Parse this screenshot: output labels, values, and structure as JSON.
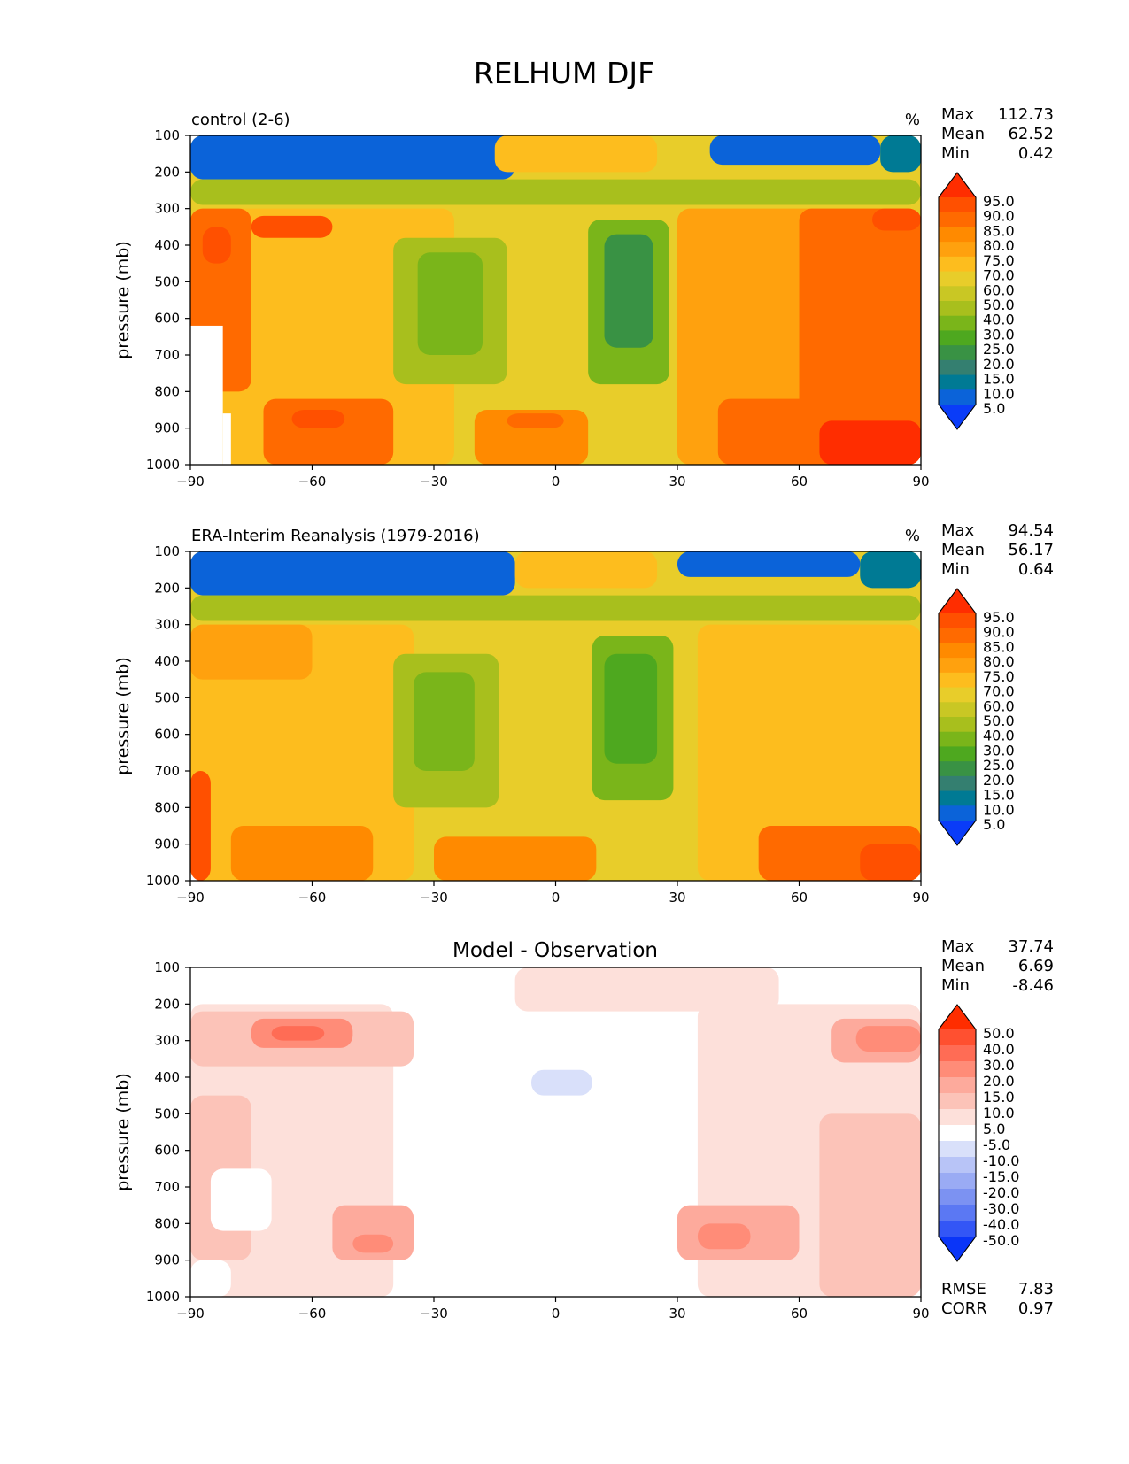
{
  "chart_data": {
    "type": "contour",
    "title": "RELHUM DJF",
    "panels": [
      {
        "id": "control",
        "title": "control (2-6)",
        "units": "%",
        "stats": [
          [
            "Max",
            "112.73"
          ],
          [
            "Mean",
            "62.52"
          ],
          [
            "Min",
            "0.42"
          ]
        ],
        "xlabel": "",
        "ylabel": "pressure (mb)",
        "xlim": [
          -90,
          90
        ],
        "ylim": [
          1000,
          100
        ],
        "xticks": [
          "−90",
          "−60",
          "−30",
          "0",
          "30",
          "60",
          "90"
        ],
        "yticks": [
          "100",
          "200",
          "300",
          "400",
          "500",
          "600",
          "700",
          "800",
          "900",
          "1000"
        ],
        "colorbar": {
          "labels": [
            "95.0",
            "90.0",
            "85.0",
            "80.0",
            "75.0",
            "70.0",
            "60.0",
            "50.0",
            "40.0",
            "30.0",
            "25.0",
            "20.0",
            "15.0",
            "10.0",
            "5.0"
          ],
          "colors": [
            "#ff2d00",
            "#ff5000",
            "#ff6a00",
            "#ff8a00",
            "#ffa10e",
            "#fdbd1e",
            "#e8cd2a",
            "#c9c724",
            "#a8bf1d",
            "#7ab51a",
            "#4ea81f",
            "#399244",
            "#347f70",
            "#007a94",
            "#0b63d9",
            "#0a3cf8"
          ],
          "extend": "both"
        },
        "blocks": [
          {
            "lat": [
              -90,
              90
            ],
            "p": [
              100,
              1000
            ],
            "v": 62
          },
          {
            "lat": [
              -90,
              -25
            ],
            "p": [
              300,
              1000
            ],
            "v": 72
          },
          {
            "lat": [
              30,
              90
            ],
            "p": [
              300,
              1000
            ],
            "v": 77
          },
          {
            "lat": [
              -90,
              -75
            ],
            "p": [
              300,
              800
            ],
            "v": 85
          },
          {
            "lat": [
              -75,
              -55
            ],
            "p": [
              320,
              380
            ],
            "v": 90
          },
          {
            "lat": [
              -87,
              -80
            ],
            "p": [
              350,
              450
            ],
            "v": 92
          },
          {
            "lat": [
              60,
              90
            ],
            "p": [
              300,
              1000
            ],
            "v": 85
          },
          {
            "lat": [
              78,
              90
            ],
            "p": [
              300,
              360
            ],
            "v": 92
          },
          {
            "lat": [
              -72,
              -40
            ],
            "p": [
              820,
              1000
            ],
            "v": 85
          },
          {
            "lat": [
              -65,
              -52
            ],
            "p": [
              850,
              900
            ],
            "v": 93
          },
          {
            "lat": [
              40,
              90
            ],
            "p": [
              820,
              1000
            ],
            "v": 85
          },
          {
            "lat": [
              65,
              90
            ],
            "p": [
              880,
              1000
            ],
            "v": 95
          },
          {
            "lat": [
              -20,
              8
            ],
            "p": [
              850,
              1000
            ],
            "v": 80
          },
          {
            "lat": [
              -12,
              2
            ],
            "p": [
              860,
              900
            ],
            "v": 87
          },
          {
            "lat": [
              -40,
              -12
            ],
            "p": [
              380,
              780
            ],
            "v": 40
          },
          {
            "lat": [
              -34,
              -18
            ],
            "p": [
              420,
              700
            ],
            "v": 35
          },
          {
            "lat": [
              8,
              28
            ],
            "p": [
              330,
              780
            ],
            "v": 32
          },
          {
            "lat": [
              12,
              24
            ],
            "p": [
              370,
              680
            ],
            "v": 22
          },
          {
            "lat": [
              -90,
              -10
            ],
            "p": [
              100,
              220
            ],
            "v": 5
          },
          {
            "lat": [
              38,
              80
            ],
            "p": [
              100,
              180
            ],
            "v": 5
          },
          {
            "lat": [
              80,
              90
            ],
            "p": [
              100,
              200
            ],
            "v": 12
          },
          {
            "lat": [
              -15,
              25
            ],
            "p": [
              100,
              200
            ],
            "v": 72
          },
          {
            "lat": [
              -90,
              90
            ],
            "p": [
              220,
              290
            ],
            "v": 45
          },
          {
            "lat": [
              -90,
              -82
            ],
            "p": [
              620,
              1000
            ],
            "v": null
          },
          {
            "lat": [
              -82,
              -80
            ],
            "p": [
              860,
              1000
            ],
            "v": null
          }
        ]
      },
      {
        "id": "obs",
        "title": "ERA-Interim Reanalysis (1979-2016)",
        "units": "%",
        "stats": [
          [
            "Max",
            "94.54"
          ],
          [
            "Mean",
            "56.17"
          ],
          [
            "Min",
            "0.64"
          ]
        ],
        "xlabel": "",
        "ylabel": "pressure (mb)",
        "xlim": [
          -90,
          90
        ],
        "ylim": [
          1000,
          100
        ],
        "xticks": [
          "−90",
          "−60",
          "−30",
          "0",
          "30",
          "60",
          "90"
        ],
        "yticks": [
          "100",
          "200",
          "300",
          "400",
          "500",
          "600",
          "700",
          "800",
          "900",
          "1000"
        ],
        "colorbar": {
          "labels": [
            "95.0",
            "90.0",
            "85.0",
            "80.0",
            "75.0",
            "70.0",
            "60.0",
            "50.0",
            "40.0",
            "30.0",
            "25.0",
            "20.0",
            "15.0",
            "10.0",
            "5.0"
          ],
          "colors": [
            "#ff2d00",
            "#ff5000",
            "#ff6a00",
            "#ff8a00",
            "#ffa10e",
            "#fdbd1e",
            "#e8cd2a",
            "#c9c724",
            "#a8bf1d",
            "#7ab51a",
            "#4ea81f",
            "#399244",
            "#347f70",
            "#007a94",
            "#0b63d9",
            "#0a3cf8"
          ],
          "extend": "both"
        },
        "blocks": [
          {
            "lat": [
              -90,
              90
            ],
            "p": [
              100,
              1000
            ],
            "v": 60
          },
          {
            "lat": [
              -90,
              -35
            ],
            "p": [
              300,
              1000
            ],
            "v": 72
          },
          {
            "lat": [
              35,
              90
            ],
            "p": [
              300,
              1000
            ],
            "v": 70
          },
          {
            "lat": [
              -90,
              -60
            ],
            "p": [
              300,
              450
            ],
            "v": 78
          },
          {
            "lat": [
              -90,
              -85
            ],
            "p": [
              700,
              1000
            ],
            "v": 90
          },
          {
            "lat": [
              -80,
              -45
            ],
            "p": [
              850,
              1000
            ],
            "v": 82
          },
          {
            "lat": [
              50,
              90
            ],
            "p": [
              850,
              1000
            ],
            "v": 85
          },
          {
            "lat": [
              75,
              90
            ],
            "p": [
              900,
              1000
            ],
            "v": 92
          },
          {
            "lat": [
              -30,
              10
            ],
            "p": [
              880,
              1000
            ],
            "v": 80
          },
          {
            "lat": [
              -40,
              -14
            ],
            "p": [
              380,
              800
            ],
            "v": 40
          },
          {
            "lat": [
              -35,
              -20
            ],
            "p": [
              430,
              700
            ],
            "v": 35
          },
          {
            "lat": [
              9,
              29
            ],
            "p": [
              330,
              780
            ],
            "v": 33
          },
          {
            "lat": [
              12,
              25
            ],
            "p": [
              380,
              680
            ],
            "v": 28
          },
          {
            "lat": [
              -90,
              -10
            ],
            "p": [
              100,
              220
            ],
            "v": 5
          },
          {
            "lat": [
              30,
              75
            ],
            "p": [
              100,
              170
            ],
            "v": 5
          },
          {
            "lat": [
              75,
              90
            ],
            "p": [
              100,
              200
            ],
            "v": 12
          },
          {
            "lat": [
              -10,
              25
            ],
            "p": [
              100,
              200
            ],
            "v": 72
          },
          {
            "lat": [
              -90,
              90
            ],
            "p": [
              220,
              290
            ],
            "v": 45
          }
        ]
      },
      {
        "id": "diff",
        "title": "Model - Observation",
        "units": "",
        "stats": [
          [
            "Max",
            "37.74"
          ],
          [
            "Mean",
            "6.69"
          ],
          [
            "Min",
            "-8.46"
          ]
        ],
        "stats_bottom": [
          [
            "RMSE",
            "7.83"
          ],
          [
            "CORR",
            "0.97"
          ]
        ],
        "xlabel": "",
        "ylabel": "pressure (mb)",
        "xlim": [
          -90,
          90
        ],
        "ylim": [
          1000,
          100
        ],
        "xticks": [
          "−90",
          "−60",
          "−30",
          "0",
          "30",
          "60",
          "90"
        ],
        "yticks": [
          "100",
          "200",
          "300",
          "400",
          "500",
          "600",
          "700",
          "800",
          "900",
          "1000"
        ],
        "colorbar": {
          "labels": [
            "50.0",
            "40.0",
            "30.0",
            "20.0",
            "15.0",
            "10.0",
            "5.0",
            "-5.0",
            "-10.0",
            "-15.0",
            "-20.0",
            "-30.0",
            "-40.0",
            "-50.0"
          ],
          "colors": [
            "#ff2d00",
            "#ff5030",
            "#ff6c55",
            "#ff8c78",
            "#fdaa9c",
            "#fcc3b8",
            "#fde0da",
            "#ffffff",
            "#d9e0fa",
            "#b8c4f7",
            "#9aabf4",
            "#7c92f2",
            "#5b78f3",
            "#3356f6",
            "#0a35f8"
          ],
          "extend": "both"
        },
        "blocks": [
          {
            "lat": [
              -90,
              90
            ],
            "p": [
              100,
              1000
            ],
            "v": 3
          },
          {
            "lat": [
              -90,
              -40
            ],
            "p": [
              200,
              1000
            ],
            "v": 8
          },
          {
            "lat": [
              35,
              90
            ],
            "p": [
              200,
              1000
            ],
            "v": 8
          },
          {
            "lat": [
              -10,
              55
            ],
            "p": [
              100,
              220
            ],
            "v": 8
          },
          {
            "lat": [
              -90,
              -35
            ],
            "p": [
              220,
              370
            ],
            "v": 10
          },
          {
            "lat": [
              -75,
              -50
            ],
            "p": [
              240,
              320
            ],
            "v": 22
          },
          {
            "lat": [
              -70,
              -57
            ],
            "p": [
              260,
              300
            ],
            "v": 32
          },
          {
            "lat": [
              68,
              90
            ],
            "p": [
              240,
              360
            ],
            "v": 15
          },
          {
            "lat": [
              74,
              90
            ],
            "p": [
              260,
              330
            ],
            "v": 22
          },
          {
            "lat": [
              65,
              90
            ],
            "p": [
              500,
              1000
            ],
            "v": 14
          },
          {
            "lat": [
              -90,
              -75
            ],
            "p": [
              450,
              900
            ],
            "v": 12
          },
          {
            "lat": [
              -55,
              -35
            ],
            "p": [
              750,
              900
            ],
            "v": 15
          },
          {
            "lat": [
              -50,
              -40
            ],
            "p": [
              830,
              880
            ],
            "v": 22
          },
          {
            "lat": [
              30,
              60
            ],
            "p": [
              750,
              900
            ],
            "v": 15
          },
          {
            "lat": [
              35,
              48
            ],
            "p": [
              800,
              870
            ],
            "v": 20
          },
          {
            "lat": [
              -20,
              30
            ],
            "p": [
              280,
              850
            ],
            "v": 2
          },
          {
            "lat": [
              -6,
              9
            ],
            "p": [
              380,
              450
            ],
            "v": -7
          },
          {
            "lat": [
              -85,
              -70
            ],
            "p": [
              650,
              820
            ],
            "v": 2
          },
          {
            "lat": [
              -90,
              -80
            ],
            "p": [
              900,
              1000
            ],
            "v": 2
          }
        ]
      }
    ]
  }
}
